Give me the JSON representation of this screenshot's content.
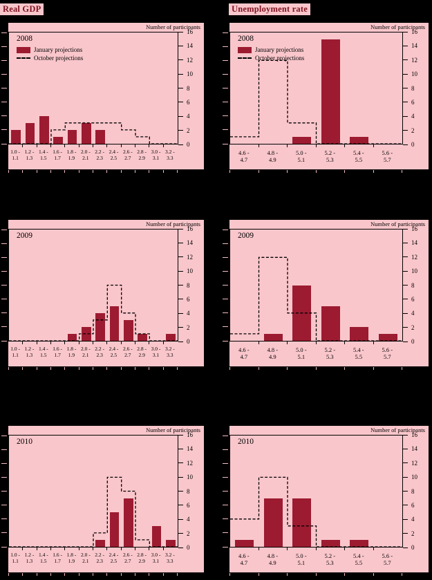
{
  "page": {
    "background": "#000000",
    "panel_background": "#f9c6cb",
    "bar_color": "#9c1b30",
    "dashed_line_color": "#000000",
    "title_color": "#7f1320"
  },
  "column_titles": [
    "Real GDP",
    "Unemployment rate"
  ],
  "axis": {
    "caption": "Number of participants",
    "y_ticks": [
      16,
      14,
      12,
      10,
      8,
      6,
      4,
      2,
      0
    ],
    "y_max": 16
  },
  "legend": {
    "january_label": "January projections",
    "october_label": "October projections"
  },
  "chart_data": [
    {
      "type": "bar",
      "year": "2008",
      "measure": "Real GDP",
      "show_legend": true,
      "ylim": [
        0,
        16
      ],
      "ylabel": "Number of participants",
      "categories": [
        "1.0 - 1.1",
        "1.2 - 1.3",
        "1.4 - 1.5",
        "1.6 - 1.7",
        "1.8 - 1.9",
        "2.0 - 2.1",
        "2.2 - 2.3",
        "2.4 - 2.5",
        "2.6 - 2.7",
        "2.8 - 2.9",
        "3.0 - 3.1",
        "3.2 - 3.3"
      ],
      "series": [
        {
          "name": "January projections",
          "style": "solid-bar",
          "color": "#9c1b30",
          "values": [
            2,
            3,
            4,
            1,
            2,
            3,
            2,
            0,
            0,
            0,
            0,
            0
          ]
        },
        {
          "name": "October projections",
          "style": "dashed-step-outline",
          "color": "#000000",
          "values": [
            0,
            0,
            0,
            2,
            3,
            3,
            3,
            3,
            2,
            1,
            0,
            0
          ]
        }
      ]
    },
    {
      "type": "bar",
      "year": "2008",
      "measure": "Unemployment rate",
      "show_legend": true,
      "ylim": [
        0,
        16
      ],
      "ylabel": "Number of participants",
      "categories": [
        "4.6 - 4.7",
        "4.8 - 4.9",
        "5.0 - 5.1",
        "5.2 - 5.3",
        "5.4 - 5.5",
        "5.6 - 5.7"
      ],
      "series": [
        {
          "name": "January projections",
          "style": "solid-bar",
          "color": "#9c1b30",
          "values": [
            0,
            0,
            1,
            15,
            1,
            0
          ]
        },
        {
          "name": "October projections",
          "style": "dashed-step-outline",
          "color": "#000000",
          "values": [
            1,
            12,
            3,
            0,
            0,
            0
          ]
        }
      ]
    },
    {
      "type": "bar",
      "year": "2009",
      "measure": "Real GDP",
      "show_legend": false,
      "ylim": [
        0,
        16
      ],
      "ylabel": "Number of participants",
      "categories": [
        "1.0 - 1.1",
        "1.2 - 1.3",
        "1.4 - 1.5",
        "1.6 - 1.7",
        "1.8 - 1.9",
        "2.0 - 2.1",
        "2.2 - 2.3",
        "2.4 - 2.5",
        "2.6 - 2.7",
        "2.8 - 2.9",
        "3.0 - 3.1",
        "3.2 - 3.3"
      ],
      "series": [
        {
          "name": "January projections",
          "style": "solid-bar",
          "color": "#9c1b30",
          "values": [
            0,
            0,
            0,
            0,
            1,
            2,
            4,
            5,
            3,
            1,
            0,
            1
          ]
        },
        {
          "name": "October projections",
          "style": "dashed-step-outline",
          "color": "#000000",
          "values": [
            0,
            0,
            0,
            0,
            0,
            1,
            3,
            8,
            4,
            1,
            0,
            0
          ]
        }
      ]
    },
    {
      "type": "bar",
      "year": "2009",
      "measure": "Unemployment rate",
      "show_legend": false,
      "ylim": [
        0,
        16
      ],
      "ylabel": "Number of participants",
      "categories": [
        "4.6 - 4.7",
        "4.8 - 4.9",
        "5.0 - 5.1",
        "5.2 - 5.3",
        "5.4 - 5.5",
        "5.6 - 5.7"
      ],
      "series": [
        {
          "name": "January projections",
          "style": "solid-bar",
          "color": "#9c1b30",
          "values": [
            0,
            1,
            8,
            5,
            2,
            1
          ]
        },
        {
          "name": "October projections",
          "style": "dashed-step-outline",
          "color": "#000000",
          "values": [
            1,
            12,
            4,
            0,
            0,
            0
          ]
        }
      ]
    },
    {
      "type": "bar",
      "year": "2010",
      "measure": "Real GDP",
      "show_legend": false,
      "ylim": [
        0,
        16
      ],
      "ylabel": "Number of participants",
      "categories": [
        "1.0 - 1.1",
        "1.2 - 1.3",
        "1.4 - 1.5",
        "1.6 - 1.7",
        "1.8 - 1.9",
        "2.0 - 2.1",
        "2.2 - 2.3",
        "2.4 - 2.5",
        "2.6 - 2.7",
        "2.8 - 2.9",
        "3.0 - 3.1",
        "3.2 - 3.3"
      ],
      "series": [
        {
          "name": "January projections",
          "style": "solid-bar",
          "color": "#9c1b30",
          "values": [
            0,
            0,
            0,
            0,
            0,
            0,
            1,
            5,
            7,
            0,
            3,
            1
          ]
        },
        {
          "name": "October projections",
          "style": "dashed-step-outline",
          "color": "#000000",
          "values": [
            0,
            0,
            0,
            0,
            0,
            0,
            2,
            10,
            8,
            1,
            0,
            0
          ]
        }
      ]
    },
    {
      "type": "bar",
      "year": "2010",
      "measure": "Unemployment rate",
      "show_legend": false,
      "ylim": [
        0,
        16
      ],
      "ylabel": "Number of participants",
      "categories": [
        "4.6 - 4.7",
        "4.8 - 4.9",
        "5.0 - 5.1",
        "5.2 - 5.3",
        "5.4 - 5.5",
        "5.6 - 5.7"
      ],
      "series": [
        {
          "name": "January projections",
          "style": "solid-bar",
          "color": "#9c1b30",
          "values": [
            1,
            7,
            7,
            1,
            1,
            0
          ]
        },
        {
          "name": "October projections",
          "style": "dashed-step-outline",
          "color": "#000000",
          "values": [
            4,
            10,
            3,
            0,
            0,
            0
          ]
        }
      ]
    }
  ]
}
